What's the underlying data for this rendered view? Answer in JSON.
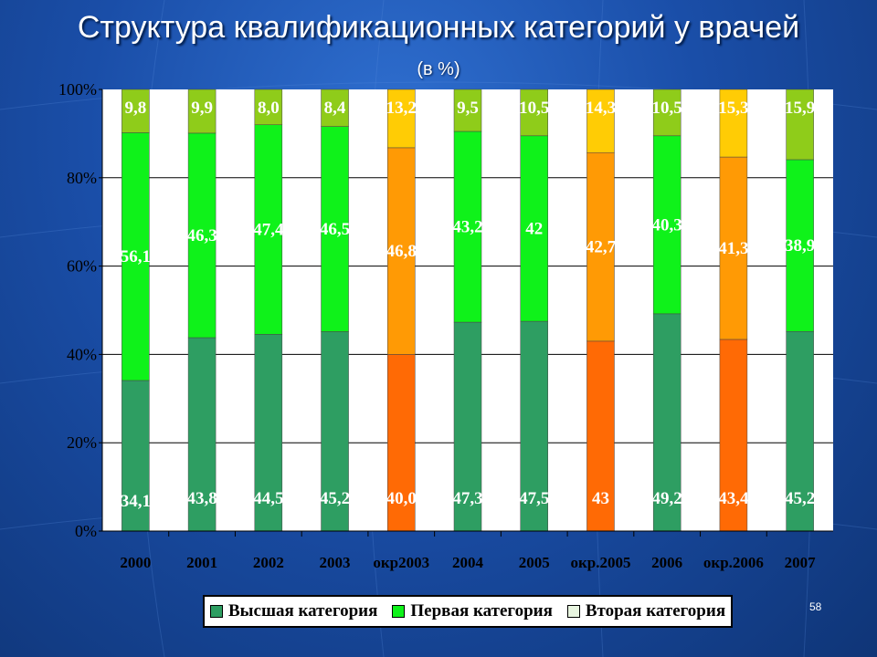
{
  "title": "Структура квалификационных категорий у врачей",
  "subtitle": "(в %)",
  "page_number": "58",
  "colors": {
    "highest": "#2e9e62",
    "first": "#0ff21a",
    "second": "#8fcc1a",
    "district_highest": "#ff6a05",
    "district_first": "#ff9a05",
    "district_second": "#ffcc05"
  },
  "chart_data": {
    "type": "bar",
    "stacked": "percent",
    "title": "Структура квалификационных категорий у врачей",
    "subtitle": "(в %)",
    "ylim": [
      0,
      100
    ],
    "y_ticks": [
      "0%",
      "20%",
      "40%",
      "60%",
      "80%",
      "100%"
    ],
    "grid": true,
    "legend_position": "bottom",
    "categories": [
      "2000",
      "2001",
      "2002",
      "2003",
      "окр2003",
      "2004",
      "2005",
      "окр.2005",
      "2006",
      "окр.2006",
      "2007"
    ],
    "series": [
      {
        "name": "Высшая категория",
        "values": [
          34.1,
          43.8,
          44.5,
          45.2,
          40.0,
          47.3,
          47.5,
          43,
          49.2,
          43.4,
          45.2
        ],
        "labels": [
          "34,1",
          "43,8",
          "44,5",
          "45,2",
          "40,0",
          "47,3",
          "47,5",
          "43",
          "49,2",
          "43,4",
          "45,2"
        ]
      },
      {
        "name": "Первая категория",
        "values": [
          56.1,
          46.3,
          47.4,
          46.5,
          46.8,
          43.2,
          42,
          42.7,
          40.3,
          41.3,
          38.9
        ],
        "labels": [
          "56,1",
          "46,3",
          "47,4",
          "46,5",
          "46,8",
          "43,2",
          "42",
          "42,7",
          "40,3",
          "41,3",
          "38,9"
        ]
      },
      {
        "name": "Вторая категория",
        "values": [
          9.8,
          9.9,
          8.0,
          8.4,
          13.2,
          9.5,
          10.5,
          14.3,
          10.5,
          15.3,
          15.9
        ],
        "labels": [
          "9,8",
          "9,9",
          "8,0",
          "8,4",
          "13,2",
          "9,5",
          "10,5",
          "14,3",
          "10,5",
          "15,3",
          "15,9"
        ]
      }
    ],
    "district_categories": [
      "окр2003",
      "окр.2005",
      "окр.2006"
    ]
  }
}
